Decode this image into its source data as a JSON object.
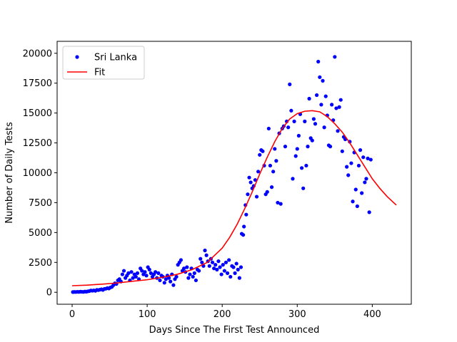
{
  "chart_data": {
    "type": "scatter",
    "xlabel": "Days Since The First Test Announced",
    "ylabel": "Number of Daily Tests",
    "xlim": [
      -20,
      452
    ],
    "ylim": [
      -1000,
      21000
    ],
    "xticks": [
      0,
      100,
      200,
      300,
      400
    ],
    "yticks": [
      0,
      2500,
      5000,
      7500,
      10000,
      12500,
      15000,
      17500,
      20000
    ],
    "legend_position": "upper-left",
    "series": [
      {
        "name": "Sri Lanka",
        "kind": "scatter",
        "color": "#0000ff",
        "points": [
          [
            1,
            20
          ],
          [
            3,
            30
          ],
          [
            5,
            25
          ],
          [
            7,
            40
          ],
          [
            9,
            30
          ],
          [
            11,
            50
          ],
          [
            13,
            40
          ],
          [
            15,
            30
          ],
          [
            17,
            60
          ],
          [
            19,
            50
          ],
          [
            21,
            80
          ],
          [
            23,
            100
          ],
          [
            25,
            150
          ],
          [
            27,
            130
          ],
          [
            29,
            160
          ],
          [
            31,
            120
          ],
          [
            33,
            200
          ],
          [
            35,
            180
          ],
          [
            37,
            220
          ],
          [
            39,
            250
          ],
          [
            41,
            200
          ],
          [
            43,
            280
          ],
          [
            45,
            300
          ],
          [
            47,
            350
          ],
          [
            49,
            320
          ],
          [
            51,
            400
          ],
          [
            53,
            450
          ],
          [
            55,
            600
          ],
          [
            57,
            750
          ],
          [
            59,
            700
          ],
          [
            61,
            1000
          ],
          [
            63,
            1100
          ],
          [
            65,
            900
          ],
          [
            67,
            1500
          ],
          [
            69,
            1800
          ],
          [
            71,
            1200
          ],
          [
            73,
            1400
          ],
          [
            75,
            1600
          ],
          [
            77,
            1000
          ],
          [
            79,
            1700
          ],
          [
            81,
            1200
          ],
          [
            83,
            1500
          ],
          [
            85,
            1300
          ],
          [
            87,
            1600
          ],
          [
            89,
            1100
          ],
          [
            91,
            2000
          ],
          [
            93,
            1800
          ],
          [
            95,
            1500
          ],
          [
            97,
            1700
          ],
          [
            99,
            1400
          ],
          [
            101,
            2100
          ],
          [
            103,
            1900
          ],
          [
            105,
            1600
          ],
          [
            107,
            1300
          ],
          [
            109,
            1500
          ],
          [
            111,
            1700
          ],
          [
            113,
            1200
          ],
          [
            115,
            1600
          ],
          [
            117,
            1000
          ],
          [
            119,
            1400
          ],
          [
            121,
            1300
          ],
          [
            123,
            800
          ],
          [
            125,
            1100
          ],
          [
            127,
            1400
          ],
          [
            129,
            1200
          ],
          [
            131,
            900
          ],
          [
            133,
            1500
          ],
          [
            135,
            600
          ],
          [
            137,
            1100
          ],
          [
            139,
            1300
          ],
          [
            141,
            2300
          ],
          [
            143,
            2500
          ],
          [
            145,
            2700
          ],
          [
            147,
            1800
          ],
          [
            149,
            2000
          ],
          [
            151,
            1700
          ],
          [
            153,
            2100
          ],
          [
            155,
            1200
          ],
          [
            157,
            1500
          ],
          [
            159,
            2000
          ],
          [
            161,
            1300
          ],
          [
            163,
            1600
          ],
          [
            165,
            1000
          ],
          [
            167,
            1900
          ],
          [
            169,
            1800
          ],
          [
            171,
            2800
          ],
          [
            173,
            2500
          ],
          [
            175,
            2200
          ],
          [
            177,
            3500
          ],
          [
            179,
            3100
          ],
          [
            181,
            2600
          ],
          [
            183,
            2200
          ],
          [
            185,
            2800
          ],
          [
            187,
            2500
          ],
          [
            189,
            2000
          ],
          [
            191,
            2300
          ],
          [
            193,
            1900
          ],
          [
            195,
            2600
          ],
          [
            197,
            2100
          ],
          [
            199,
            1500
          ],
          [
            201,
            2300
          ],
          [
            203,
            1800
          ],
          [
            205,
            2500
          ],
          [
            207,
            1600
          ],
          [
            209,
            2700
          ],
          [
            211,
            1300
          ],
          [
            213,
            2200
          ],
          [
            215,
            2100
          ],
          [
            217,
            1600
          ],
          [
            219,
            2400
          ],
          [
            221,
            1900
          ],
          [
            223,
            1200
          ],
          [
            225,
            2100
          ],
          [
            226,
            4900
          ],
          [
            228,
            4800
          ],
          [
            229,
            5500
          ],
          [
            231,
            7300
          ],
          [
            232,
            6500
          ],
          [
            234,
            8200
          ],
          [
            236,
            9600
          ],
          [
            238,
            9200
          ],
          [
            240,
            8700
          ],
          [
            242,
            8900
          ],
          [
            244,
            9400
          ],
          [
            246,
            8000
          ],
          [
            248,
            10100
          ],
          [
            250,
            11500
          ],
          [
            252,
            11900
          ],
          [
            254,
            11800
          ],
          [
            256,
            10600
          ],
          [
            258,
            8200
          ],
          [
            260,
            8400
          ],
          [
            262,
            13700
          ],
          [
            264,
            10600
          ],
          [
            266,
            8800
          ],
          [
            268,
            10100
          ],
          [
            270,
            12000
          ],
          [
            272,
            11000
          ],
          [
            274,
            7500
          ],
          [
            276,
            13300
          ],
          [
            278,
            7400
          ],
          [
            280,
            13700
          ],
          [
            282,
            13900
          ],
          [
            284,
            12200
          ],
          [
            286,
            14300
          ],
          [
            288,
            13800
          ],
          [
            290,
            17400
          ],
          [
            292,
            15200
          ],
          [
            294,
            9500
          ],
          [
            296,
            14300
          ],
          [
            298,
            11400
          ],
          [
            300,
            12000
          ],
          [
            302,
            13100
          ],
          [
            304,
            14900
          ],
          [
            306,
            10400
          ],
          [
            308,
            8700
          ],
          [
            310,
            14300
          ],
          [
            312,
            10600
          ],
          [
            314,
            12200
          ],
          [
            316,
            16200
          ],
          [
            318,
            12900
          ],
          [
            320,
            12700
          ],
          [
            322,
            14500
          ],
          [
            324,
            14100
          ],
          [
            326,
            16500
          ],
          [
            328,
            19300
          ],
          [
            330,
            18000
          ],
          [
            332,
            15700
          ],
          [
            334,
            17700
          ],
          [
            336,
            13800
          ],
          [
            338,
            16400
          ],
          [
            340,
            14800
          ],
          [
            342,
            12300
          ],
          [
            344,
            12200
          ],
          [
            346,
            15700
          ],
          [
            348,
            14400
          ],
          [
            350,
            19700
          ],
          [
            352,
            15400
          ],
          [
            354,
            13500
          ],
          [
            356,
            15500
          ],
          [
            358,
            16100
          ],
          [
            360,
            11800
          ],
          [
            362,
            13000
          ],
          [
            364,
            12800
          ],
          [
            366,
            10500
          ],
          [
            368,
            9800
          ],
          [
            370,
            12600
          ],
          [
            372,
            10800
          ],
          [
            374,
            7600
          ],
          [
            376,
            11700
          ],
          [
            378,
            8600
          ],
          [
            380,
            7200
          ],
          [
            382,
            10600
          ],
          [
            384,
            11900
          ],
          [
            386,
            8300
          ],
          [
            388,
            11300
          ],
          [
            390,
            9200
          ],
          [
            392,
            9500
          ],
          [
            394,
            11200
          ],
          [
            396,
            6700
          ],
          [
            398,
            11100
          ]
        ]
      },
      {
        "name": "Fit",
        "kind": "line",
        "color": "#ff0000",
        "x": [
          0,
          20,
          40,
          60,
          80,
          100,
          120,
          140,
          160,
          180,
          200,
          210,
          220,
          230,
          240,
          250,
          260,
          270,
          280,
          290,
          300,
          310,
          320,
          330,
          340,
          350,
          360,
          370,
          380,
          390,
          400,
          410,
          420,
          432
        ],
        "y": [
          550,
          600,
          680,
          780,
          920,
          1050,
          1250,
          1500,
          1900,
          2500,
          3700,
          4600,
          5700,
          7000,
          8400,
          9900,
          11300,
          12600,
          13700,
          14500,
          14950,
          15150,
          15200,
          15100,
          14700,
          14100,
          13400,
          12500,
          11500,
          10500,
          9500,
          8700,
          8000,
          7300
        ]
      }
    ]
  }
}
